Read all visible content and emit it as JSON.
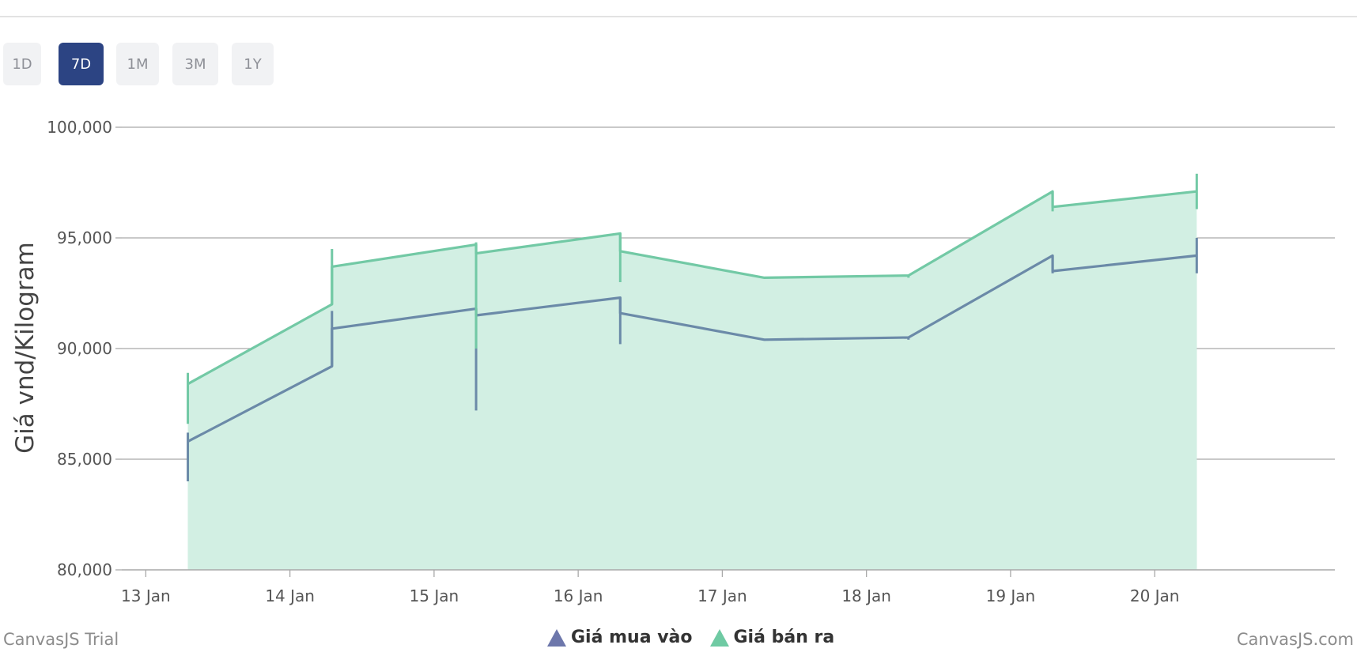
{
  "range_buttons": [
    {
      "label": "1D",
      "active": false
    },
    {
      "label": "7D",
      "active": true
    },
    {
      "label": "1M",
      "active": false
    },
    {
      "label": "3M",
      "active": false
    },
    {
      "label": "1Y",
      "active": false
    }
  ],
  "footer": {
    "left": "CanvasJS Trial",
    "right": "CanvasJS.com"
  },
  "colors": {
    "buy": "#6b8aa8",
    "buy_fill": "#b4d4d3",
    "sell": "#72c9a5",
    "sell_fill": "#d2efe3",
    "legend_buy": "#6d77ab",
    "legend_sell": "#6fcaa3"
  },
  "chart_data": {
    "type": "area",
    "ylabel": "Giá vnd/Kilogram",
    "xlabel": "",
    "ylim": [
      80000,
      100000
    ],
    "yticks": [
      80000,
      85000,
      90000,
      95000,
      100000
    ],
    "ytick_labels": [
      "80,000",
      "85,000",
      "90,000",
      "95,000",
      "100,000"
    ],
    "xticks": [
      "2024-01-13",
      "2024-01-14",
      "2024-01-15",
      "2024-01-16",
      "2024-01-17",
      "2024-01-18",
      "2024-01-19",
      "2024-01-20"
    ],
    "xtick_labels": [
      "13 Jan",
      "14 Jan",
      "15 Jan",
      "16 Jan",
      "17 Jan",
      "18 Jan",
      "19 Jan",
      "20 Jan"
    ],
    "x": [
      "2024-01-13 07:00",
      "2024-01-14 07:00",
      "2024-01-15 07:00",
      "2024-01-16 07:00",
      "2024-01-17 07:00",
      "2024-01-18 07:00",
      "2024-01-19 07:00",
      "2024-01-20 07:00"
    ],
    "series": [
      {
        "name": "Giá mua vào",
        "color_key": "buy",
        "points": [
          {
            "open": 85800,
            "close": 85800,
            "high": 86200,
            "low": 84000
          },
          {
            "open": 89200,
            "close": 90900,
            "high": 91700,
            "low": 89200
          },
          {
            "open": 91800,
            "close": 91500,
            "high": 91800,
            "low": 87200
          },
          {
            "open": 92300,
            "close": 91600,
            "high": 92300,
            "low": 90200
          },
          {
            "open": 90400,
            "close": 90400,
            "high": 90400,
            "low": 90400
          },
          {
            "open": 90500,
            "close": 90500,
            "high": 90500,
            "low": 90400
          },
          {
            "open": 94200,
            "close": 93500,
            "high": 94200,
            "low": 93400
          },
          {
            "open": 94200,
            "close": 94200,
            "high": 95000,
            "low": 93400
          }
        ]
      },
      {
        "name": "Giá bán ra",
        "color_key": "sell",
        "points": [
          {
            "open": 88400,
            "close": 88400,
            "high": 88900,
            "low": 86600
          },
          {
            "open": 92000,
            "close": 93700,
            "high": 94500,
            "low": 92000
          },
          {
            "open": 94700,
            "close": 94300,
            "high": 94800,
            "low": 90000
          },
          {
            "open": 95200,
            "close": 94400,
            "high": 95200,
            "low": 93000
          },
          {
            "open": 93200,
            "close": 93200,
            "high": 93200,
            "low": 93200
          },
          {
            "open": 93300,
            "close": 93300,
            "high": 93300,
            "low": 93200
          },
          {
            "open": 97100,
            "close": 96400,
            "high": 97100,
            "low": 96200
          },
          {
            "open": 97100,
            "close": 97100,
            "high": 97900,
            "low": 96300
          }
        ]
      }
    ],
    "grid": true,
    "legend_position": "bottom-center"
  }
}
